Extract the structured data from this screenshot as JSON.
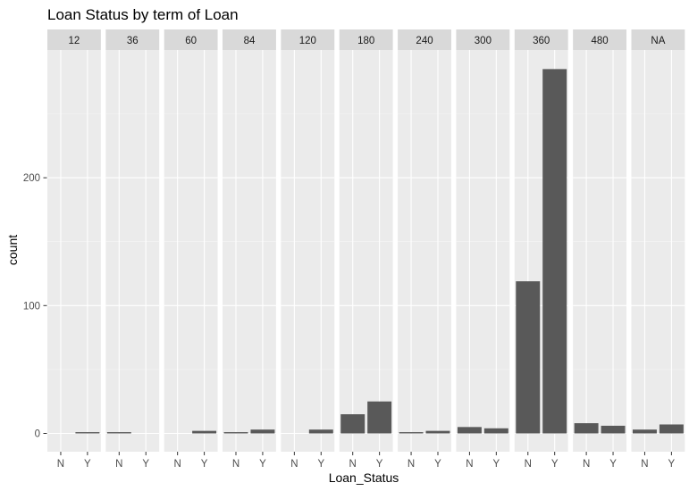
{
  "chart_data": {
    "type": "bar",
    "title": "Loan Status by term of Loan",
    "xlabel": "Loan_Status",
    "ylabel": "count",
    "categories": [
      "N",
      "Y"
    ],
    "yticks": [
      0,
      100,
      200
    ],
    "ylim": [
      -10,
      300
    ],
    "grid": true,
    "legend": "none",
    "colors": {
      "bar": "#595959",
      "panel_background": "#EBEBEB",
      "strip_background": "#D9D9D9",
      "grid_major": "#FFFFFF"
    },
    "facets": [
      {
        "label": "12",
        "values": [
          0,
          1
        ]
      },
      {
        "label": "36",
        "values": [
          1,
          0
        ]
      },
      {
        "label": "60",
        "values": [
          0,
          2
        ]
      },
      {
        "label": "84",
        "values": [
          1,
          3
        ]
      },
      {
        "label": "120",
        "values": [
          0,
          3
        ]
      },
      {
        "label": "180",
        "values": [
          15,
          25
        ]
      },
      {
        "label": "240",
        "values": [
          1,
          2
        ]
      },
      {
        "label": "300",
        "values": [
          5,
          4
        ]
      },
      {
        "label": "360",
        "values": [
          119,
          285
        ]
      },
      {
        "label": "480",
        "values": [
          8,
          6
        ]
      },
      {
        "label": "NA",
        "values": [
          3,
          7
        ]
      }
    ]
  }
}
